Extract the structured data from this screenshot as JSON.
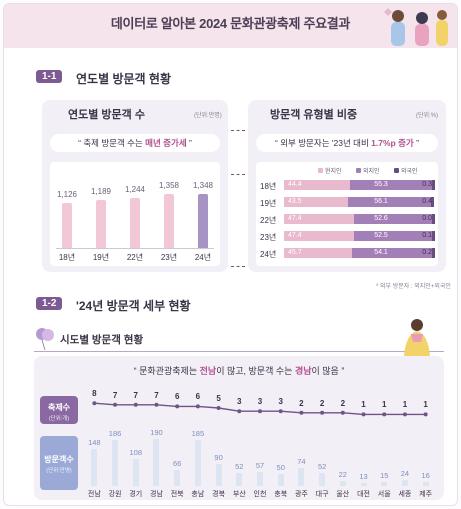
{
  "header": {
    "title": "데이터로 알아본 2024 문화관광축제 주요결과"
  },
  "section1": {
    "badge": "1-1",
    "title": "연도별 방문객 현황"
  },
  "visitors_panel": {
    "title": "연도별 방문객 수",
    "unit": "(단위:만명)",
    "headline_pre": "“ 축제 방문객 수는 ",
    "headline_hl": "매년 증가세",
    "headline_post": " ”"
  },
  "type_panel": {
    "title": "방문객 유형별 비중",
    "unit": "(단위:%)",
    "headline_pre": "“ 외부 방문자는 '23년 대비 ",
    "headline_hl": "1.7%p 증가",
    "headline_post": " ”",
    "legend": [
      "현지인",
      "외지인",
      "외국인"
    ],
    "note": "* 외부 방문자 : 외지인+외국인"
  },
  "section2": {
    "badge": "1-2",
    "title": "'24년 방문객 세부 현황"
  },
  "subsection": {
    "title": "시도별 방문객 현황"
  },
  "regional": {
    "headline_pre": "“ 문화관광축제는 ",
    "headline_hl1": "전남",
    "headline_mid": "이 많고, 방문객 수는 ",
    "headline_hl2": "경남",
    "headline_post": "이 많음 ”",
    "tag_count": "축제수",
    "tag_count_unit": "(단위:개)",
    "tag_visitors": "방문객수",
    "tag_visitors_unit": "(단위:만명)"
  },
  "chart_data": [
    {
      "type": "bar",
      "title": "연도별 방문객 수",
      "categories": [
        "18년",
        "19년",
        "22년",
        "23년",
        "24년"
      ],
      "values": [
        1126,
        1189,
        1244,
        1358,
        1348
      ],
      "value_labels": [
        "1,126",
        "1,189",
        "1,244",
        "1,358",
        "1,348"
      ],
      "ylim": [
        0,
        1500
      ],
      "colors": [
        "#f2c8d6",
        "#f2c8d6",
        "#f2c8d6",
        "#f2c8d6",
        "#a894c4"
      ]
    },
    {
      "type": "bar",
      "title": "방문객 유형별 비중",
      "stacked": true,
      "orientation": "horizontal",
      "categories": [
        "18년",
        "19년",
        "22년",
        "23년",
        "24년"
      ],
      "series": [
        {
          "name": "현지인",
          "values": [
            44.4,
            43.5,
            47.4,
            47.4,
            45.7
          ],
          "color": "#e9b9cd"
        },
        {
          "name": "외지인",
          "values": [
            55.3,
            56.1,
            52.6,
            52.5,
            54.1
          ],
          "color": "#a37fb8"
        },
        {
          "name": "외국인",
          "values": [
            0.3,
            0.4,
            0.0,
            0.1,
            0.2
          ],
          "color": "#6a4d80"
        }
      ]
    },
    {
      "type": "line",
      "title": "축제수",
      "categories": [
        "전남",
        "강원",
        "경기",
        "경남",
        "전북",
        "충남",
        "경북",
        "부산",
        "인천",
        "충북",
        "광주",
        "대구",
        "울산",
        "대전",
        "서울",
        "세종",
        "제주"
      ],
      "values": [
        8,
        7,
        7,
        7,
        6,
        6,
        5,
        3,
        3,
        3,
        2,
        2,
        2,
        1,
        1,
        1,
        1
      ]
    },
    {
      "type": "bar",
      "title": "방문객수",
      "categories": [
        "전남",
        "강원",
        "경기",
        "경남",
        "전북",
        "충남",
        "경북",
        "부산",
        "인천",
        "충북",
        "광주",
        "대구",
        "울산",
        "대전",
        "서울",
        "세종",
        "제주"
      ],
      "values": [
        148,
        186,
        108,
        190,
        66,
        185,
        90,
        52,
        57,
        50,
        74,
        52,
        22,
        13,
        15,
        24,
        16
      ]
    }
  ]
}
